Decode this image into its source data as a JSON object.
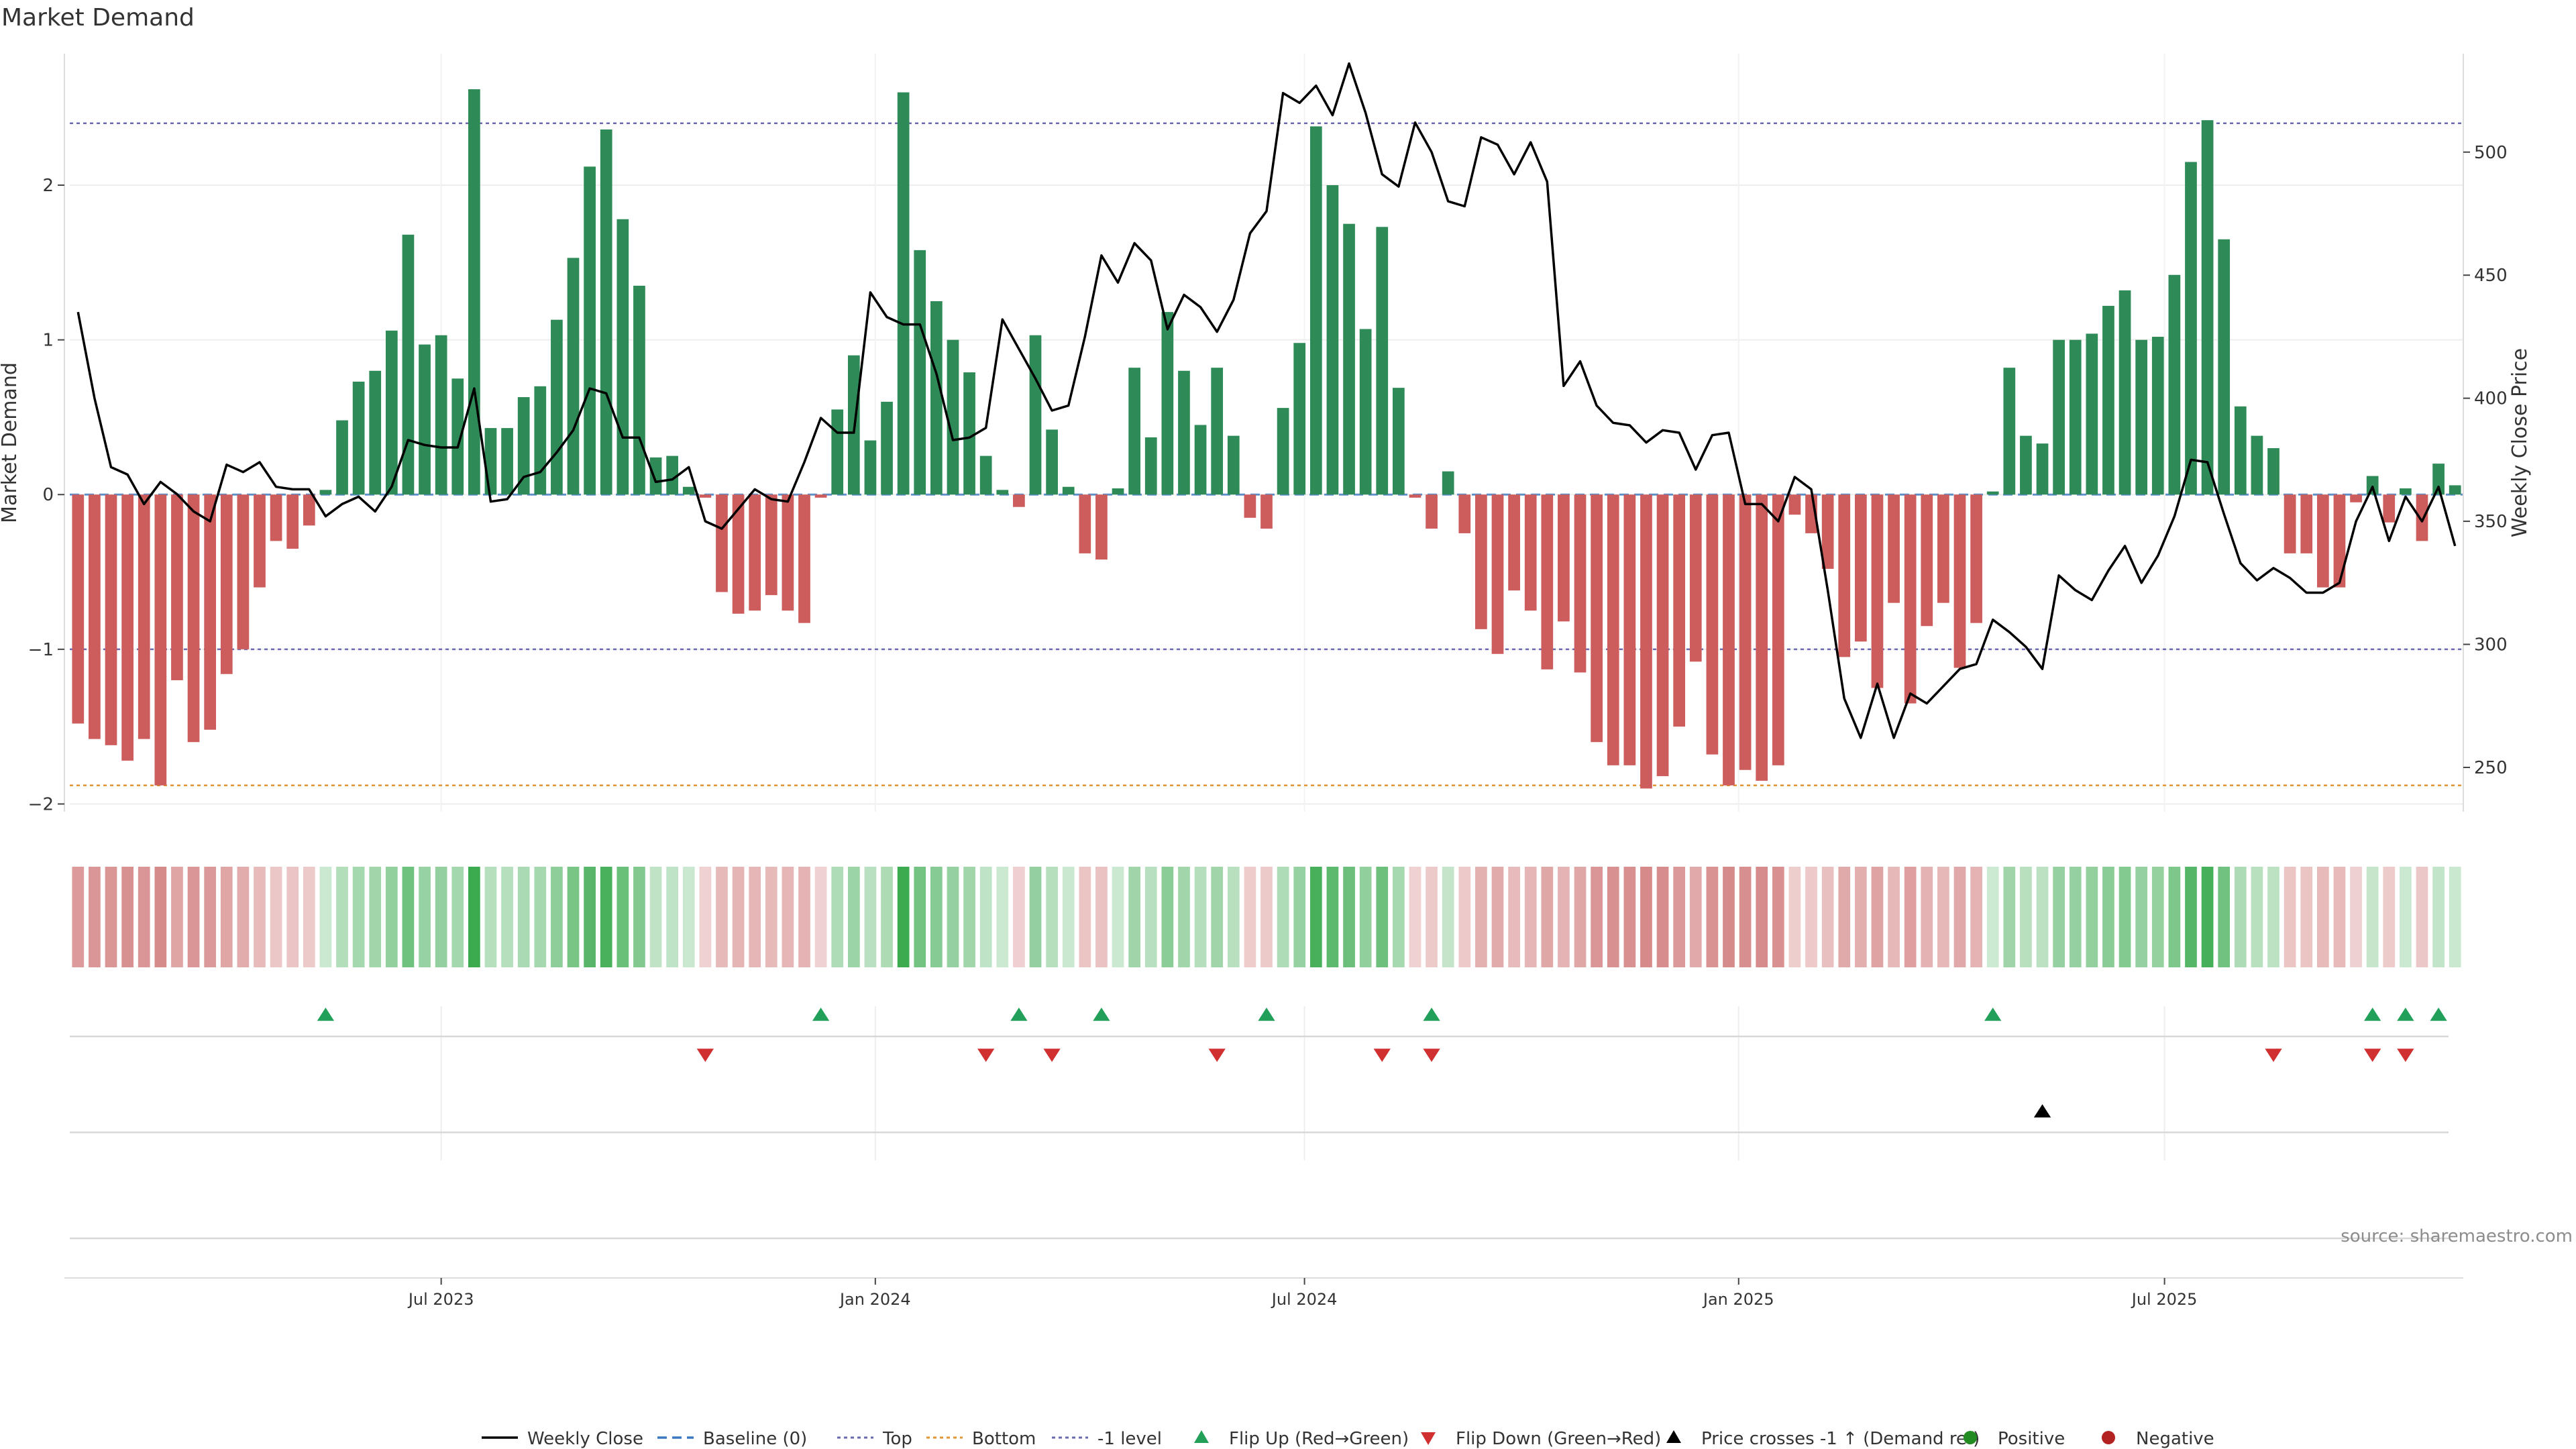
{
  "title": "Market Demand",
  "source": "source: sharemaestro.com",
  "colors": {
    "positive_bar": "#2e8b57",
    "negative_bar": "#cd5c5c",
    "price_line": "#000000",
    "top_line": "#6a6ab0",
    "bottom_line": "#e69533",
    "minus1_line": "#6a6ab0",
    "baseline": "#3a78c0",
    "flip_up": "#22a05a",
    "flip_down": "#d03030",
    "cross_marker": "#000000",
    "heat_pos_strong": "#3cab50",
    "heat_pos_light": "#cde9d2",
    "heat_neg_strong": "#cc7070",
    "heat_neg_light": "#f0d2d2",
    "legend_positive": "#228b22",
    "legend_negative": "#b22222"
  },
  "legend": [
    {
      "label": "Weekly Close",
      "kind": "line-solid",
      "color": "#000000"
    },
    {
      "label": "Baseline (0)",
      "kind": "line-dash",
      "color": "#3a78c0"
    },
    {
      "label": "Top",
      "kind": "line-dot",
      "color": "#6a6ab0"
    },
    {
      "label": "Bottom",
      "kind": "line-dot",
      "color": "#e69533"
    },
    {
      "label": "-1 level",
      "kind": "line-dot",
      "color": "#6a6ab0"
    },
    {
      "label": "Flip Up (Red→Green)",
      "kind": "tri-up",
      "color": "#22a05a"
    },
    {
      "label": "Flip Down (Green→Red)",
      "kind": "tri-down",
      "color": "#d03030"
    },
    {
      "label": "Price crosses -1 ↑ (Demand ref)",
      "kind": "tri-up",
      "color": "#000000"
    },
    {
      "label": "Positive",
      "kind": "dot",
      "color": "#228b22"
    },
    {
      "label": "Negative",
      "kind": "dot",
      "color": "#b22222"
    }
  ],
  "chart_data": {
    "type": "bar",
    "title": "Market Demand",
    "ylabel": "Market Demand",
    "y2label": "Weekly Close Price",
    "ylim": [
      -2.05,
      2.85
    ],
    "y2lim": [
      232,
      540
    ],
    "yticks": [
      -2,
      -1,
      0,
      1,
      2
    ],
    "y2ticks": [
      250,
      300,
      350,
      400,
      450,
      500
    ],
    "ytick_labels": [
      "−2",
      "−1",
      "0",
      "1",
      "2"
    ],
    "y2tick_labels": [
      "250",
      "300",
      "350",
      "400",
      "450",
      "500"
    ],
    "x_axis": "weekly, 2023-01-06 to 2025-10-10",
    "xticks": [
      {
        "label": "Jul 2023",
        "index": 22
      },
      {
        "label": "Jan 2024",
        "index": 48.3
      },
      {
        "label": "Jul 2024",
        "index": 74.3
      },
      {
        "label": "Jan 2025",
        "index": 100.6
      },
      {
        "label": "Jul 2025",
        "index": 126.4
      }
    ],
    "reference_lines": {
      "top": 2.4,
      "bottom": -1.88,
      "minus1": -1.0,
      "baseline": 0
    },
    "series": [
      {
        "name": "Market Demand",
        "values": [
          -1.48,
          -1.58,
          -1.62,
          -1.72,
          -1.58,
          -1.88,
          -1.2,
          -1.6,
          -1.52,
          -1.16,
          -1.0,
          -0.6,
          -0.3,
          -0.35,
          -0.2,
          0.03,
          0.48,
          0.73,
          0.8,
          1.06,
          1.68,
          0.97,
          1.03,
          0.75,
          2.62,
          0.43,
          0.43,
          0.63,
          0.7,
          1.13,
          1.53,
          2.12,
          2.36,
          1.78,
          1.35,
          0.24,
          0.25,
          0.05,
          -0.02,
          -0.63,
          -0.77,
          -0.75,
          -0.65,
          -0.75,
          -0.83,
          -0.02,
          0.55,
          0.9,
          0.35,
          0.6,
          2.6,
          1.58,
          1.25,
          1.0,
          0.79,
          0.25,
          0.03,
          -0.08,
          1.03,
          0.42,
          0.05,
          -0.38,
          -0.42,
          0.04,
          0.82,
          0.37,
          1.18,
          0.8,
          0.45,
          0.82,
          0.38,
          -0.15,
          -0.22,
          0.56,
          0.98,
          2.38,
          2.0,
          1.75,
          1.07,
          1.73,
          0.69,
          -0.02,
          -0.22,
          0.15,
          -0.25,
          -0.87,
          -1.03,
          -0.62,
          -0.75,
          -1.13,
          -0.82,
          -1.15,
          -1.6,
          -1.75,
          -1.75,
          -1.9,
          -1.82,
          -1.5,
          -1.08,
          -1.68,
          -1.88,
          -1.78,
          -1.85,
          -1.75,
          -0.13,
          -0.25,
          -0.48,
          -1.05,
          -0.95,
          -1.25,
          -0.7,
          -1.35,
          -0.85,
          -0.7,
          -1.12,
          -0.83,
          0.02,
          0.82,
          0.38,
          0.33,
          1.0,
          1.0,
          1.04,
          1.22,
          1.32,
          1.0,
          1.02,
          1.42,
          2.15,
          2.42,
          1.65,
          0.57,
          0.38,
          0.3,
          -0.38,
          -0.38,
          -0.6,
          -0.6,
          -0.05,
          0.12,
          -0.18,
          0.04,
          -0.3,
          0.2,
          0.06
        ]
      },
      {
        "name": "Weekly Close",
        "values": [
          435,
          400,
          372,
          369,
          357,
          366,
          361,
          354,
          350,
          373,
          370,
          374,
          364,
          363,
          363,
          352,
          357,
          360,
          354,
          364,
          383,
          381,
          380,
          380,
          404,
          358,
          359,
          368,
          370,
          378,
          387,
          404,
          402,
          384,
          384,
          366,
          367,
          372,
          350,
          347,
          355,
          363,
          359,
          358,
          374,
          392,
          386,
          386,
          443,
          433,
          430,
          430,
          410,
          383,
          384,
          388,
          432,
          420,
          408,
          395,
          397,
          425,
          458,
          447,
          463,
          456,
          428,
          442,
          437,
          427,
          440,
          467,
          476,
          524,
          520,
          527,
          515,
          536,
          516,
          491,
          486,
          512,
          500,
          480,
          478,
          506,
          503,
          491,
          504,
          488,
          405,
          415,
          397,
          390,
          389,
          382,
          387,
          386,
          371,
          385,
          386,
          357,
          357,
          350,
          368,
          363,
          322,
          278,
          262,
          284,
          262,
          280,
          276,
          283,
          290,
          292,
          310,
          305,
          299,
          290,
          328,
          322,
          318,
          330,
          340,
          325,
          336,
          352,
          375,
          374,
          353,
          333,
          326,
          331,
          327,
          321,
          321,
          325,
          350,
          364,
          342,
          360,
          350,
          364,
          340
        ]
      }
    ],
    "heatmap_intensity": "mirrors Market Demand sign and magnitude per week",
    "flip_up": [
      15,
      45,
      57,
      62,
      72,
      82,
      116,
      139,
      141,
      143
    ],
    "flip_down": [
      38,
      55,
      59,
      69,
      79,
      82,
      133,
      139,
      141
    ],
    "price_crosses_minus1_up": [
      119
    ]
  }
}
